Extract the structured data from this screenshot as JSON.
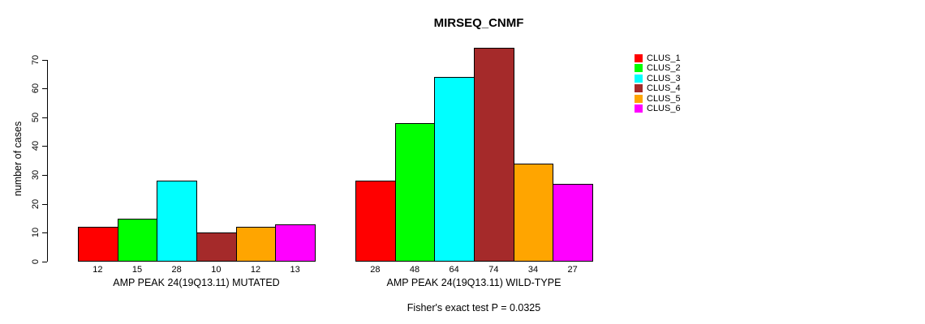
{
  "chart_data": {
    "type": "bar",
    "title": "MIRSEQ_CNMF",
    "ylabel": "number of cases",
    "xlabel": "",
    "yticks": [
      0,
      10,
      20,
      30,
      40,
      50,
      60,
      70
    ],
    "ylim": [
      0,
      74
    ],
    "grid": false,
    "legend_position": "right-outside",
    "series_names": [
      "CLUS_1",
      "CLUS_2",
      "CLUS_3",
      "CLUS_4",
      "CLUS_5",
      "CLUS_6"
    ],
    "series_colors": [
      "#FF0000",
      "#00FF00",
      "#00FFFF",
      "#A52A2A",
      "#FFA500",
      "#FF00FF"
    ],
    "groups": [
      {
        "label": "AMP PEAK 24(19Q13.11) MUTATED",
        "values": [
          12,
          15,
          28,
          10,
          12,
          13
        ]
      },
      {
        "label": "AMP PEAK 24(19Q13.11) WILD-TYPE",
        "values": [
          28,
          48,
          64,
          74,
          34,
          27
        ]
      }
    ],
    "bar_value_labels": [
      [
        12,
        15,
        28,
        10,
        12,
        13
      ],
      [
        28,
        48,
        64,
        74,
        34,
        27
      ]
    ],
    "annotation": "Fisher's exact test P = 0.0325",
    "colors": {
      "background": "#FFFFFF",
      "axis": "#000000",
      "text": "#000000",
      "bar_border": "#000000"
    }
  }
}
